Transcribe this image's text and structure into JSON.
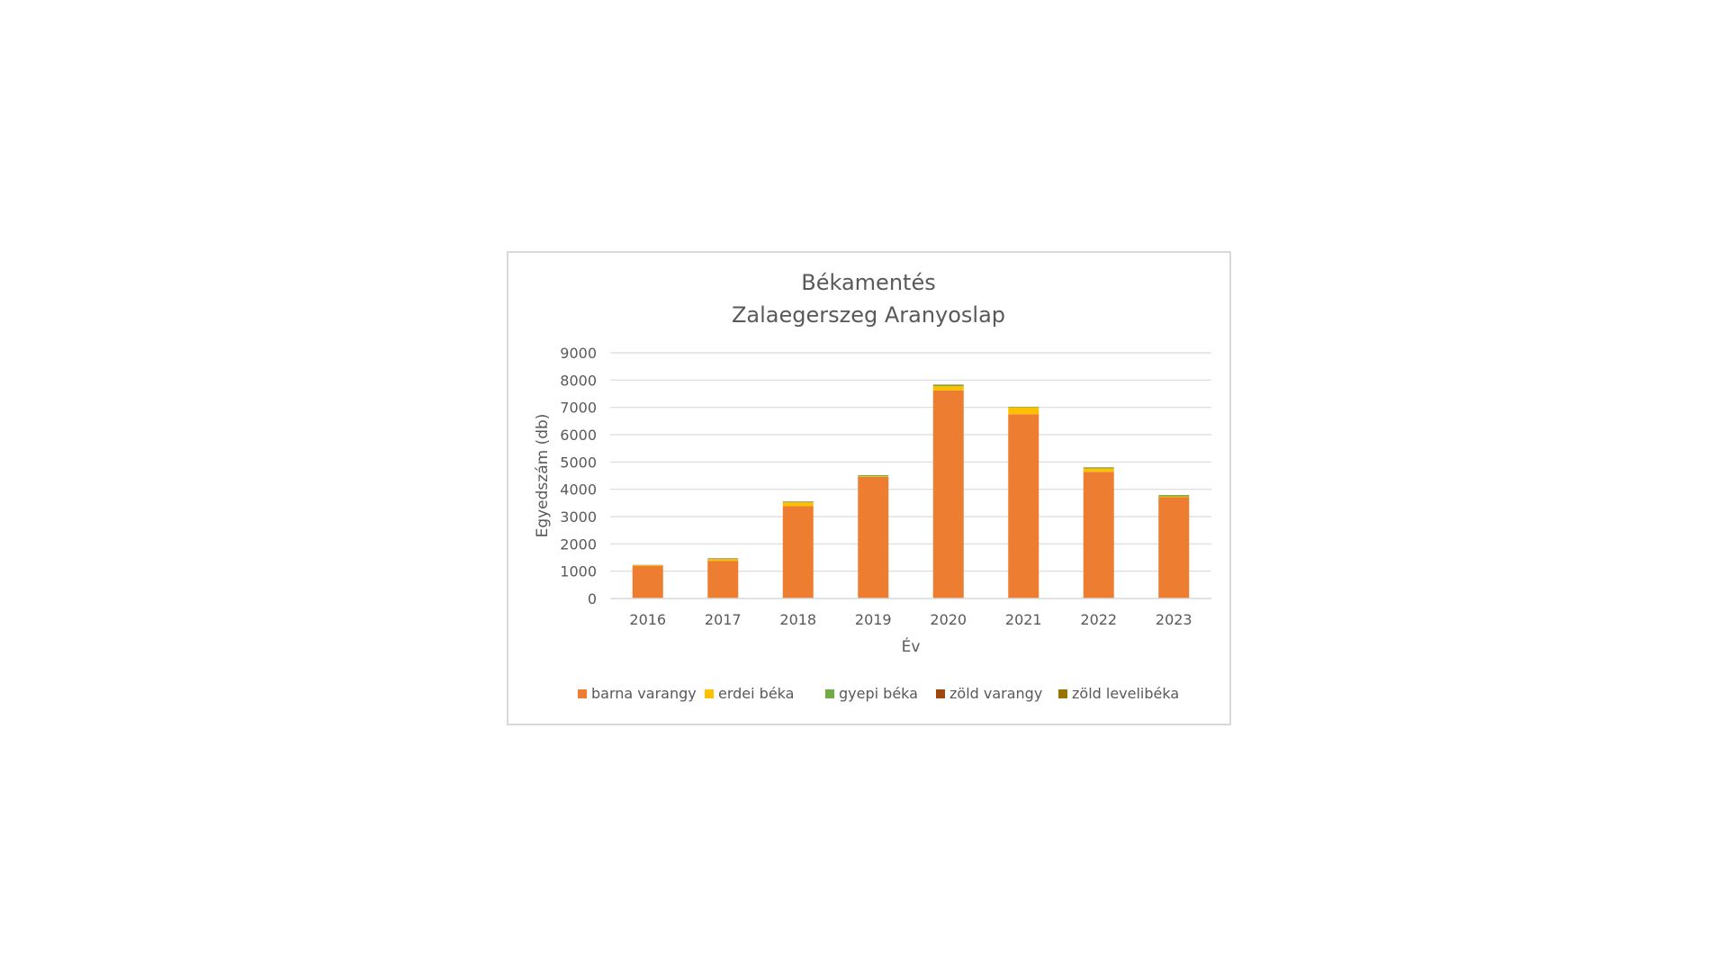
{
  "chart_data": {
    "type": "bar",
    "stacked": true,
    "title": [
      "Békamentés",
      "Zalaegerszeg Aranyoslap"
    ],
    "xlabel": "Év",
    "ylabel": "Egyedszám (db)",
    "ylim": [
      0,
      9000
    ],
    "yticks": [
      "0",
      "1000",
      "2000",
      "3000",
      "4000",
      "5000",
      "6000",
      "7000",
      "8000",
      "9000"
    ],
    "grid": true,
    "legend_position": "bottom",
    "categories": [
      "2016",
      "2017",
      "2018",
      "2019",
      "2020",
      "2021",
      "2022",
      "2023"
    ],
    "series": [
      {
        "name": "barna varangy",
        "color": "#ED7D31",
        "values": [
          1200,
          1380,
          3380,
          4460,
          7620,
          6750,
          4640,
          3710
        ]
      },
      {
        "name": "erdei béka",
        "color": "#FFC000",
        "values": [
          20,
          60,
          140,
          20,
          160,
          250,
          120,
          30
        ]
      },
      {
        "name": "gyepi béka",
        "color": "#70AD47",
        "values": [
          10,
          20,
          20,
          40,
          40,
          20,
          30,
          50
        ]
      },
      {
        "name": "zöld varangy",
        "color": "#9E480E",
        "values": [
          0,
          10,
          10,
          0,
          10,
          0,
          10,
          0
        ]
      },
      {
        "name": "zöld levelibéka",
        "color": "#997300",
        "values": [
          0,
          5,
          5,
          0,
          5,
          5,
          5,
          0
        ]
      }
    ]
  }
}
